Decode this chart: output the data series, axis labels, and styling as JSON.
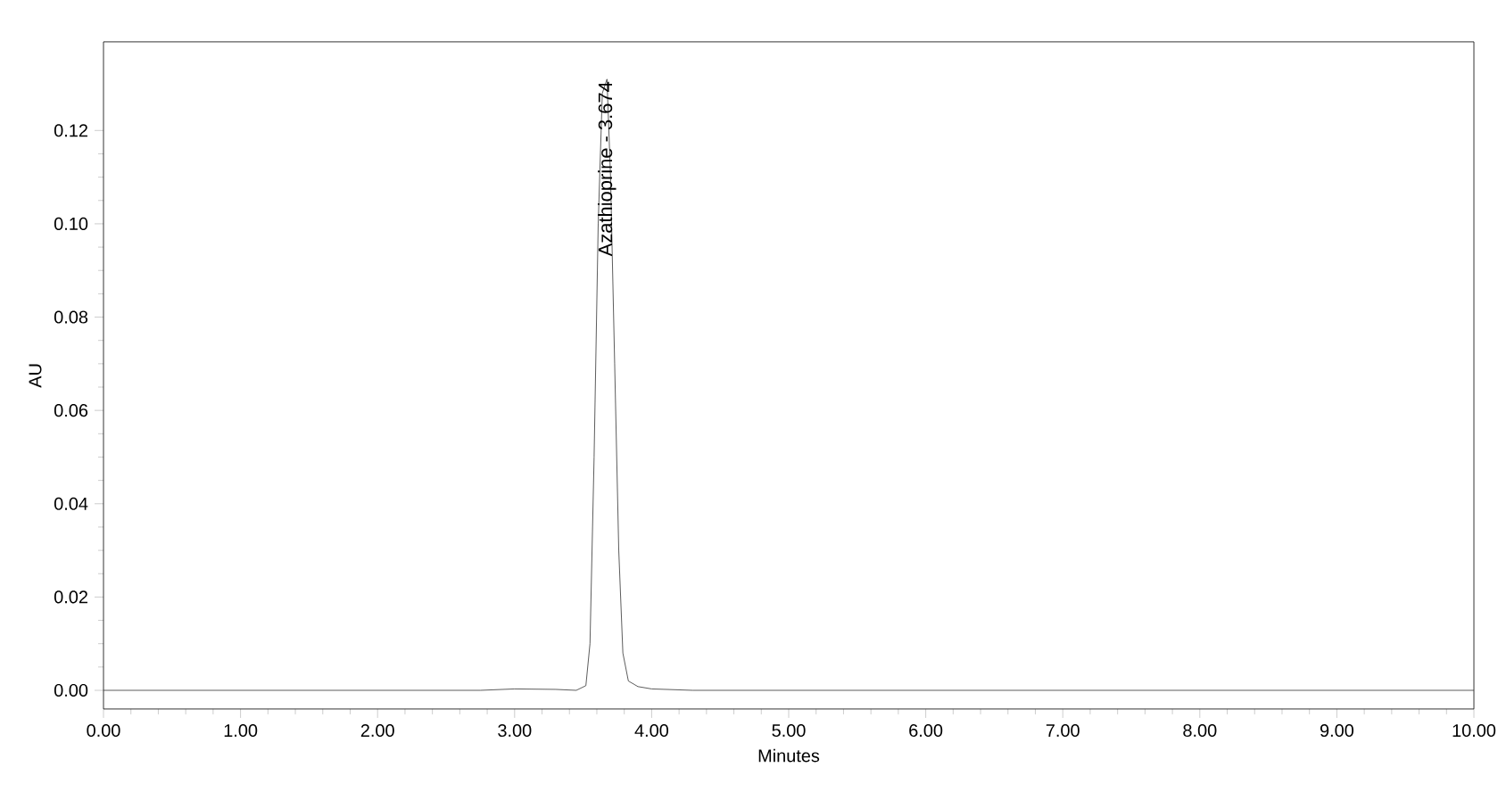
{
  "chart_data": {
    "type": "line",
    "xlabel": "Minutes",
    "ylabel": "AU",
    "x": [
      0,
      2.75,
      3.0,
      3.3,
      3.45,
      3.52,
      3.55,
      3.58,
      3.61,
      3.64,
      3.674,
      3.7,
      3.73,
      3.76,
      3.79,
      3.83,
      3.9,
      4.0,
      4.3,
      10
    ],
    "series": [
      {
        "color": "#333333",
        "values": [
          0,
          0,
          0.0003,
          0.0002,
          0,
          0.001,
          0.01,
          0.05,
          0.1,
          0.128,
          0.131,
          0.11,
          0.07,
          0.03,
          0.008,
          0.002,
          0.0008,
          0.0003,
          0,
          0
        ]
      }
    ],
    "xlim": [
      0,
      10
    ],
    "ylim": [
      -0.004,
      0.139
    ],
    "xticks": [
      {
        "value": 0,
        "label": "0.00"
      },
      {
        "value": 1,
        "label": "1.00"
      },
      {
        "value": 2,
        "label": "2.00"
      },
      {
        "value": 3,
        "label": "3.00"
      },
      {
        "value": 4,
        "label": "4.00"
      },
      {
        "value": 5,
        "label": "5.00"
      },
      {
        "value": 6,
        "label": "6.00"
      },
      {
        "value": 7,
        "label": "7.00"
      },
      {
        "value": 8,
        "label": "8.00"
      },
      {
        "value": 9,
        "label": "9.00"
      },
      {
        "value": 10,
        "label": "10.00"
      }
    ],
    "yticks": [
      {
        "value": 0,
        "label": "0.00"
      },
      0.02,
      0.04,
      0.06,
      0.08,
      {
        "value": 0.1,
        "label": "0.10"
      },
      0.12
    ],
    "annotations": [
      {
        "text": "Azathioprine - 3.674",
        "x": 3.674,
        "y": 0.131
      }
    ],
    "grid": false,
    "marker": "none",
    "line_style": "solid"
  }
}
